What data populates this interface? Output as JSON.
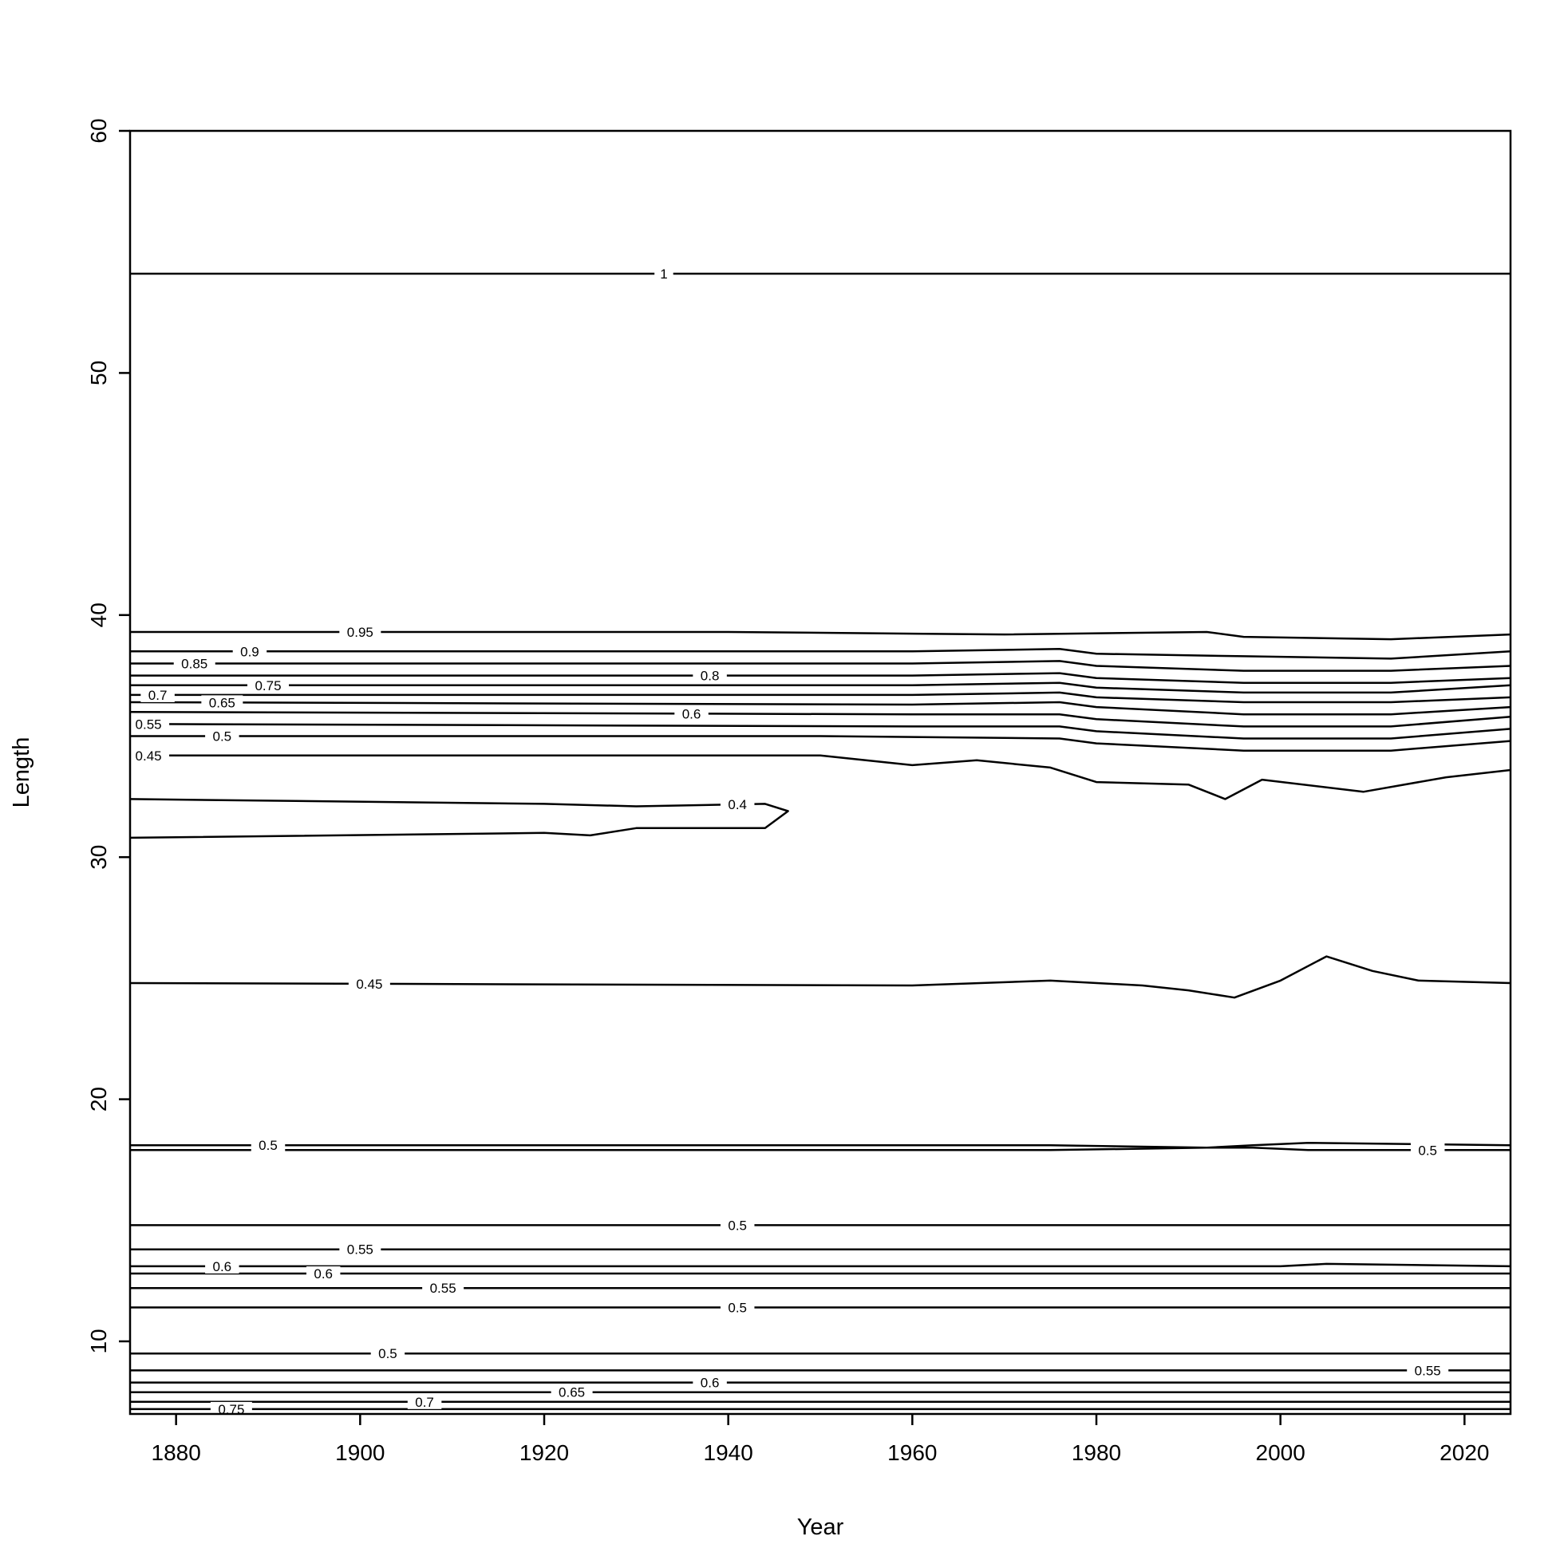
{
  "chart_data": {
    "type": "contour",
    "xlabel": "Year",
    "ylabel": "Length",
    "xlim": [
      1875,
      2025
    ],
    "ylim": [
      7,
      60
    ],
    "xticks": [
      1880,
      1900,
      1920,
      1940,
      1960,
      1980,
      2000,
      2020
    ],
    "yticks": [
      10,
      20,
      30,
      40,
      50,
      60
    ],
    "grid": false,
    "contours": [
      {
        "level": "1",
        "label_x": 1933,
        "points": [
          [
            1875,
            54.1
          ],
          [
            2025,
            54.1
          ]
        ]
      },
      {
        "level": "0.95",
        "label_x": 1900,
        "points": [
          [
            1875,
            39.3
          ],
          [
            1940,
            39.3
          ],
          [
            1970,
            39.2
          ],
          [
            1992,
            39.3
          ],
          [
            1996,
            39.1
          ],
          [
            2012,
            39.0
          ],
          [
            2025,
            39.2
          ]
        ]
      },
      {
        "level": "0.9",
        "label_x": 1888,
        "points": [
          [
            1875,
            38.5
          ],
          [
            1960,
            38.5
          ],
          [
            1976,
            38.6
          ],
          [
            1980,
            38.4
          ],
          [
            1996,
            38.3
          ],
          [
            2012,
            38.2
          ],
          [
            2025,
            38.5
          ]
        ]
      },
      {
        "level": "0.85",
        "label_x": 1882,
        "points": [
          [
            1875,
            38.0
          ],
          [
            1960,
            38.0
          ],
          [
            1976,
            38.1
          ],
          [
            1980,
            37.9
          ],
          [
            1996,
            37.7
          ],
          [
            2012,
            37.7
          ],
          [
            2025,
            37.9
          ]
        ]
      },
      {
        "level": "0.8",
        "label_x": 1938,
        "points": [
          [
            1875,
            37.5
          ],
          [
            1960,
            37.5
          ],
          [
            1976,
            37.6
          ],
          [
            1980,
            37.4
          ],
          [
            1996,
            37.2
          ],
          [
            2012,
            37.2
          ],
          [
            2025,
            37.4
          ]
        ]
      },
      {
        "level": "0.75",
        "label_x": 1890,
        "points": [
          [
            1875,
            37.1
          ],
          [
            1960,
            37.1
          ],
          [
            1976,
            37.2
          ],
          [
            1980,
            37.0
          ],
          [
            1996,
            36.8
          ],
          [
            2012,
            36.8
          ],
          [
            2025,
            37.1
          ]
        ]
      },
      {
        "level": "0.7",
        "label_x": 1878,
        "points": [
          [
            1875,
            36.7
          ],
          [
            1960,
            36.7
          ],
          [
            1976,
            36.8
          ],
          [
            1980,
            36.6
          ],
          [
            1996,
            36.4
          ],
          [
            2012,
            36.4
          ],
          [
            2025,
            36.6
          ]
        ]
      },
      {
        "level": "0.65",
        "label_x": 1885,
        "points": [
          [
            1875,
            36.4
          ],
          [
            1960,
            36.3
          ],
          [
            1976,
            36.4
          ],
          [
            1980,
            36.2
          ],
          [
            1996,
            35.9
          ],
          [
            2012,
            35.9
          ],
          [
            2025,
            36.2
          ]
        ]
      },
      {
        "level": "0.6",
        "label_x": 1936,
        "points": [
          [
            1875,
            36.0
          ],
          [
            1960,
            35.9
          ],
          [
            1976,
            35.9
          ],
          [
            1980,
            35.7
          ],
          [
            1996,
            35.4
          ],
          [
            2012,
            35.4
          ],
          [
            2025,
            35.8
          ]
        ]
      },
      {
        "level": "0.55",
        "label_x": 1877,
        "points": [
          [
            1875,
            35.5
          ],
          [
            1960,
            35.4
          ],
          [
            1976,
            35.4
          ],
          [
            1980,
            35.2
          ],
          [
            1996,
            34.9
          ],
          [
            2012,
            34.9
          ],
          [
            2025,
            35.3
          ]
        ]
      },
      {
        "level": "0.5",
        "label_x": 1885,
        "points": [
          [
            1875,
            35.0
          ],
          [
            1950,
            35.0
          ],
          [
            1976,
            34.9
          ],
          [
            1980,
            34.7
          ],
          [
            1996,
            34.4
          ],
          [
            2012,
            34.4
          ],
          [
            2025,
            34.8
          ]
        ]
      },
      {
        "level": "0.45",
        "label_x": 1877,
        "points": [
          [
            1875,
            34.2
          ],
          [
            1950,
            34.2
          ],
          [
            1960,
            33.8
          ],
          [
            1967,
            34.0
          ],
          [
            1975,
            33.7
          ],
          [
            1980,
            33.1
          ],
          [
            1990,
            33.0
          ],
          [
            1994,
            32.4
          ],
          [
            1998,
            33.2
          ],
          [
            2009,
            32.7
          ],
          [
            2018,
            33.3
          ],
          [
            2025,
            33.6
          ]
        ]
      },
      {
        "level": "0.4",
        "label_x": 1941,
        "points": [
          [
            1875,
            32.4
          ],
          [
            1920,
            32.2
          ],
          [
            1930,
            32.1
          ],
          [
            1944,
            32.2
          ],
          [
            1946.5,
            31.9
          ],
          [
            1944,
            31.2
          ],
          [
            1930,
            31.2
          ],
          [
            1925,
            30.9
          ],
          [
            1920,
            31.0
          ],
          [
            1875,
            30.8
          ]
        ]
      },
      {
        "level": "0.45",
        "label_x": 1901,
        "points": [
          [
            1875,
            24.8
          ],
          [
            1960,
            24.7
          ],
          [
            1975,
            24.9
          ],
          [
            1985,
            24.7
          ],
          [
            1990,
            24.5
          ],
          [
            1995,
            24.2
          ],
          [
            2000,
            24.9
          ],
          [
            2005,
            25.9
          ],
          [
            2010,
            25.3
          ],
          [
            2015,
            24.9
          ],
          [
            2025,
            24.8
          ]
        ]
      },
      {
        "level": "0.5",
        "label_x": 1890,
        "points": [
          [
            1875,
            18.1
          ],
          [
            1975,
            18.1
          ],
          [
            1992,
            18.0
          ],
          [
            1997,
            18.1
          ],
          [
            2003,
            18.2
          ],
          [
            2025,
            18.1
          ]
        ]
      },
      {
        "level": "0.5",
        "label_x": 2016,
        "points": [
          [
            1875,
            17.9
          ],
          [
            1975,
            17.9
          ],
          [
            1992,
            18.0
          ],
          [
            1997,
            18.0
          ],
          [
            2003,
            17.9
          ],
          [
            2025,
            17.9
          ]
        ]
      },
      {
        "level": "0.5",
        "label_x": 1941,
        "points": [
          [
            1875,
            14.8
          ],
          [
            2025,
            14.8
          ]
        ]
      },
      {
        "level": "0.55",
        "label_x": 1900,
        "points": [
          [
            1875,
            13.8
          ],
          [
            2025,
            13.8
          ]
        ]
      },
      {
        "level": "0.6",
        "label_x": 1885,
        "points": [
          [
            1875,
            13.1
          ],
          [
            2000,
            13.1
          ],
          [
            2005,
            13.2
          ],
          [
            2025,
            13.1
          ]
        ]
      },
      {
        "level": "0.6",
        "label_x": 1896,
        "points": [
          [
            1875,
            12.8
          ],
          [
            2025,
            12.8
          ]
        ]
      },
      {
        "level": "0.55",
        "label_x": 1909,
        "points": [
          [
            1875,
            12.2
          ],
          [
            2025,
            12.2
          ]
        ]
      },
      {
        "level": "0.5",
        "label_x": 1941,
        "points": [
          [
            1875,
            11.4
          ],
          [
            2025,
            11.4
          ]
        ]
      },
      {
        "level": "0.5",
        "label_x": 1903,
        "points": [
          [
            1875,
            9.5
          ],
          [
            2025,
            9.5
          ]
        ]
      },
      {
        "level": "0.55",
        "label_x": 2016,
        "points": [
          [
            1875,
            8.8
          ],
          [
            2025,
            8.8
          ]
        ]
      },
      {
        "level": "0.6",
        "label_x": 1938,
        "points": [
          [
            1875,
            8.3
          ],
          [
            2025,
            8.3
          ]
        ]
      },
      {
        "level": "0.65",
        "label_x": 1923,
        "points": [
          [
            1875,
            7.9
          ],
          [
            2025,
            7.9
          ]
        ]
      },
      {
        "level": "0.7",
        "label_x": 1907,
        "points": [
          [
            1875,
            7.5
          ],
          [
            2025,
            7.5
          ]
        ]
      },
      {
        "level": "0.75",
        "label_x": 1886,
        "points": [
          [
            1875,
            7.2
          ],
          [
            2025,
            7.2
          ]
        ]
      }
    ]
  }
}
